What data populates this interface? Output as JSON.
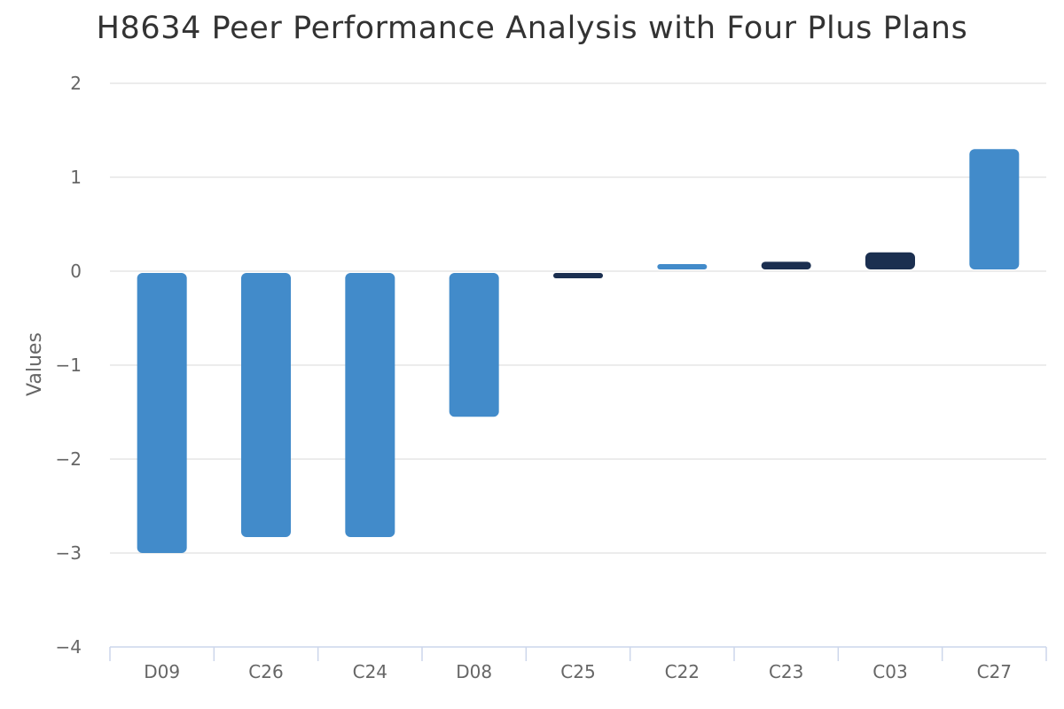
{
  "chart_data": {
    "type": "bar",
    "title": "H8634 Peer Performance Analysis with Four Plus Plans",
    "ylabel": "Values",
    "xlabel": "",
    "ylim": [
      -4,
      2
    ],
    "yticks": [
      2,
      1,
      0,
      -1,
      -2,
      -3,
      -4
    ],
    "ytick_labels": [
      "2",
      "1",
      "0",
      "−1",
      "−2",
      "−3",
      "−4"
    ],
    "grid": true,
    "categories": [
      "D09",
      "C26",
      "C24",
      "D08",
      "C25",
      "C22",
      "C23",
      "C03",
      "C27"
    ],
    "values": [
      -3.0,
      -2.83,
      -2.83,
      -1.55,
      -0.05,
      0.05,
      0.1,
      0.2,
      1.3
    ],
    "colors": [
      "#428bca",
      "#428bca",
      "#428bca",
      "#428bca",
      "#1b2f50",
      "#428bca",
      "#1b2f50",
      "#1b2f50",
      "#428bca"
    ]
  },
  "colors": {
    "primary": "#428bca",
    "dark": "#1b2f50",
    "grid": "#e6e6e6",
    "axis": "#ccd6eb",
    "text": "#666666",
    "title": "#333333"
  }
}
